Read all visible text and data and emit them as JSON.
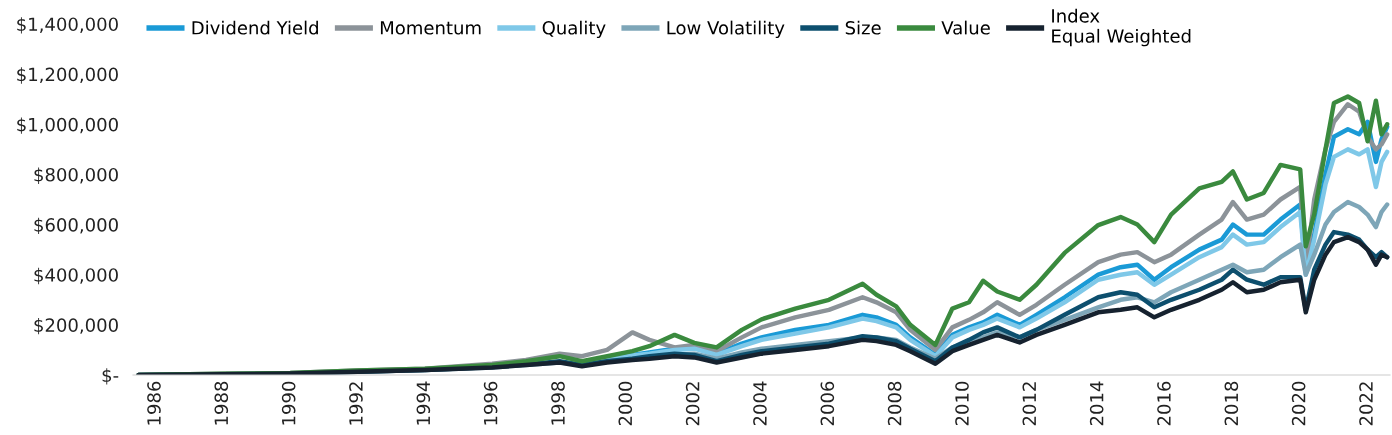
{
  "chart_data": {
    "type": "line",
    "x": [
      "1985-07",
      "1988-01",
      "1990-01",
      "1992-01",
      "1994-01",
      "1996-01",
      "1997-01",
      "1998-01",
      "1998-09",
      "1999-06",
      "2000-03",
      "2000-09",
      "2001-06",
      "2002-01",
      "2002-09",
      "2003-06",
      "2004-01",
      "2005-01",
      "2006-01",
      "2007-01",
      "2007-06",
      "2008-01",
      "2008-06",
      "2009-03",
      "2009-09",
      "2010-03",
      "2010-08",
      "2011-01",
      "2011-09",
      "2012-03",
      "2013-01",
      "2014-01",
      "2014-09",
      "2015-03",
      "2015-09",
      "2016-03",
      "2017-01",
      "2017-09",
      "2018-01",
      "2018-06",
      "2018-12",
      "2019-06",
      "2020-01",
      "2020-03",
      "2020-06",
      "2020-10",
      "2021-01",
      "2021-06",
      "2021-10",
      "2022-01",
      "2022-04",
      "2022-06",
      "2022-08"
    ],
    "series": [
      {
        "name": "Dividend Yield",
        "color": "#1a9ad6",
        "values": [
          null,
          null,
          null,
          null,
          null,
          null,
          null,
          null,
          48000,
          65000,
          80000,
          90000,
          105000,
          115000,
          85000,
          125000,
          150000,
          180000,
          200000,
          240000,
          230000,
          200000,
          150000,
          80000,
          160000,
          190000,
          210000,
          240000,
          200000,
          240000,
          310000,
          400000,
          430000,
          440000,
          380000,
          430000,
          500000,
          540000,
          600000,
          560000,
          560000,
          620000,
          680000,
          410000,
          560000,
          800000,
          950000,
          980000,
          960000,
          1010000,
          850000,
          940000,
          990000
        ]
      },
      {
        "name": "Momentum",
        "color": "#8c9399",
        "values": [
          0,
          5000,
          8000,
          18000,
          25000,
          45000,
          60000,
          85000,
          75000,
          100000,
          170000,
          140000,
          110000,
          120000,
          95000,
          150000,
          190000,
          230000,
          260000,
          310000,
          290000,
          250000,
          180000,
          100000,
          190000,
          220000,
          250000,
          290000,
          240000,
          280000,
          360000,
          450000,
          480000,
          490000,
          450000,
          480000,
          560000,
          620000,
          690000,
          620000,
          640000,
          700000,
          750000,
          420000,
          700000,
          900000,
          1010000,
          1080000,
          1050000,
          950000,
          900000,
          920000,
          960000
        ]
      },
      {
        "name": "Quality",
        "color": "#7fc8e8",
        "values": [
          null,
          null,
          null,
          null,
          null,
          null,
          null,
          null,
          46000,
          62000,
          78000,
          85000,
          100000,
          105000,
          80000,
          115000,
          140000,
          165000,
          190000,
          225000,
          215000,
          190000,
          140000,
          75000,
          150000,
          180000,
          200000,
          225000,
          190000,
          225000,
          290000,
          380000,
          400000,
          410000,
          360000,
          400000,
          470000,
          510000,
          560000,
          520000,
          530000,
          590000,
          650000,
          400000,
          540000,
          760000,
          870000,
          900000,
          880000,
          900000,
          750000,
          850000,
          890000
        ]
      },
      {
        "name": "Low Volatility",
        "color": "#7ea6b8",
        "values": [
          0,
          3000,
          6000,
          13000,
          20000,
          30000,
          40000,
          50000,
          42000,
          55000,
          65000,
          70000,
          80000,
          85000,
          65000,
          90000,
          105000,
          120000,
          135000,
          150000,
          150000,
          140000,
          110000,
          65000,
          110000,
          130000,
          150000,
          170000,
          150000,
          180000,
          220000,
          270000,
          300000,
          310000,
          290000,
          330000,
          380000,
          420000,
          440000,
          410000,
          420000,
          470000,
          520000,
          400000,
          480000,
          600000,
          650000,
          690000,
          670000,
          640000,
          590000,
          650000,
          680000
        ]
      },
      {
        "name": "Size",
        "color": "#0d4f6e",
        "values": [
          0,
          3000,
          6000,
          13000,
          20000,
          32000,
          42000,
          55000,
          40000,
          55000,
          65000,
          75000,
          85000,
          80000,
          55000,
          80000,
          95000,
          110000,
          125000,
          155000,
          150000,
          135000,
          105000,
          55000,
          110000,
          140000,
          170000,
          190000,
          150000,
          180000,
          240000,
          310000,
          330000,
          320000,
          270000,
          300000,
          340000,
          380000,
          420000,
          380000,
          360000,
          390000,
          390000,
          260000,
          420000,
          520000,
          570000,
          560000,
          540000,
          500000,
          470000,
          490000,
          470000
        ]
      },
      {
        "name": "Value",
        "color": "#3a8a3e",
        "values": [
          0,
          5000,
          8000,
          18000,
          25000,
          40000,
          55000,
          75000,
          55000,
          75000,
          95000,
          115000,
          160000,
          128000,
          110000,
          180000,
          222000,
          265000,
          300000,
          364000,
          320000,
          274000,
          200000,
          120000,
          265000,
          290000,
          376000,
          333000,
          300000,
          360000,
          487000,
          598000,
          630000,
          600000,
          530000,
          640000,
          744000,
          770000,
          812000,
          700000,
          726000,
          838000,
          820000,
          513000,
          641000,
          900000,
          1085000,
          1111000,
          1085000,
          932000,
          1094000,
          960000,
          1000000
        ]
      },
      {
        "name": "Index\nEqual Weighted",
        "color": "#16222f",
        "values": [
          0,
          3000,
          6000,
          13000,
          20000,
          30000,
          40000,
          50000,
          35000,
          50000,
          60000,
          65000,
          75000,
          70000,
          50000,
          70000,
          85000,
          100000,
          115000,
          140000,
          135000,
          120000,
          95000,
          45000,
          95000,
          120000,
          140000,
          160000,
          130000,
          160000,
          200000,
          250000,
          260000,
          270000,
          230000,
          260000,
          300000,
          340000,
          370000,
          330000,
          340000,
          370000,
          380000,
          250000,
          380000,
          480000,
          530000,
          550000,
          530000,
          500000,
          440000,
          480000,
          470000
        ]
      }
    ],
    "xlim": [
      "1985-05",
      "2022-09"
    ],
    "xticks": [
      {
        "value": "1986",
        "label": "1986"
      },
      {
        "value": "1988",
        "label": "1988"
      },
      {
        "value": "1990",
        "label": "1990"
      },
      {
        "value": "1992",
        "label": "1992"
      },
      {
        "value": "1994",
        "label": "1994"
      },
      {
        "value": "1996",
        "label": "1996"
      },
      {
        "value": "1998",
        "label": "1998"
      },
      {
        "value": "2000",
        "label": "2000"
      },
      {
        "value": "2002",
        "label": "2002"
      },
      {
        "value": "2004",
        "label": "2004"
      },
      {
        "value": "2006",
        "label": "2006"
      },
      {
        "value": "2008",
        "label": "2008"
      },
      {
        "value": "2010",
        "label": "2010"
      },
      {
        "value": "2012",
        "label": "2012"
      },
      {
        "value": "2014",
        "label": "2014"
      },
      {
        "value": "2016",
        "label": "2016"
      },
      {
        "value": "2018",
        "label": "2018"
      },
      {
        "value": "2020",
        "label": "2020"
      },
      {
        "value": "2022",
        "label": "2022"
      }
    ],
    "ylim": [
      0,
      1400000
    ],
    "yticks": [
      {
        "value": 0,
        "label": "$-"
      },
      {
        "value": 200000,
        "label": "$200,000"
      },
      {
        "value": 400000,
        "label": "$400,000"
      },
      {
        "value": 600000,
        "label": "$600,000"
      },
      {
        "value": 800000,
        "label": "$800,000"
      },
      {
        "value": 1000000,
        "label": "$1,000,000"
      },
      {
        "value": 1200000,
        "label": "$1,200,000"
      },
      {
        "value": 1400000,
        "label": "$1,400,000"
      }
    ],
    "legend": "top",
    "grid": false,
    "marker": "none",
    "line_style": "solid"
  }
}
